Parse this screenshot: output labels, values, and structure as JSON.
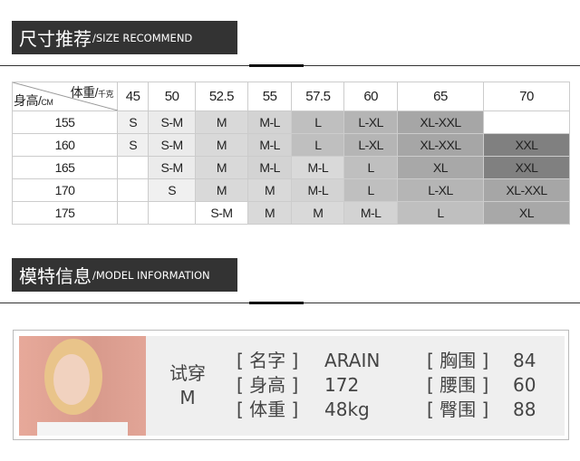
{
  "size_section": {
    "title_cn": "尺寸推荐",
    "title_en": "/SIZE RECOMMEND"
  },
  "table": {
    "weight_label": "体重/",
    "weight_unit": "千克",
    "height_label": "身高/",
    "height_unit": "CM",
    "weights": [
      "45",
      "50",
      "52.5",
      "55",
      "57.5",
      "60",
      "65",
      "70"
    ],
    "rows": [
      {
        "height": "155",
        "sizes": [
          "S",
          "S-M",
          "M",
          "M-L",
          "L",
          "L-XL",
          "XL-XXL",
          ""
        ]
      },
      {
        "height": "160",
        "sizes": [
          "S",
          "S-M",
          "M",
          "M-L",
          "L",
          "L-XL",
          "XL-XXL",
          "XXL"
        ]
      },
      {
        "height": "165",
        "sizes": [
          "",
          "S-M",
          "M",
          "M-L",
          "M-L",
          "L",
          "XL",
          "XXL"
        ]
      },
      {
        "height": "170",
        "sizes": [
          "",
          "S",
          "M",
          "M",
          "M-L",
          "L",
          "L-XL",
          "XL-XXL"
        ]
      },
      {
        "height": "175",
        "sizes": [
          "",
          "",
          "S-M",
          "M",
          "M",
          "M-L",
          "L",
          "XL"
        ]
      }
    ],
    "colors": {
      "S": "#f0f0f0",
      "S-M": "#ebebeb",
      "M": "#d9d9d9",
      "M-L": "#d3d3d3",
      "L": "#bfbfbf",
      "L-XL": "#b5b5b5",
      "XL": "#a8a8a8",
      "XL-XXL": "#a6a6a6",
      "XXL": "#808080"
    }
  },
  "model_section": {
    "title_cn": "模特信息",
    "title_en": "/MODEL INFORMATION"
  },
  "model": {
    "try_label": "试穿",
    "try_size": "M",
    "left": [
      {
        "label": "[ 名字 ]",
        "value": "ARAIN"
      },
      {
        "label": "[ 身高 ]",
        "value": "172"
      },
      {
        "label": "[ 体重 ]",
        "value": "48kg"
      }
    ],
    "right": [
      {
        "label": "[ 胸围 ]",
        "value": "84"
      },
      {
        "label": "[ 腰围 ]",
        "value": "60"
      },
      {
        "label": "[ 臀围 ]",
        "value": "88"
      }
    ]
  }
}
